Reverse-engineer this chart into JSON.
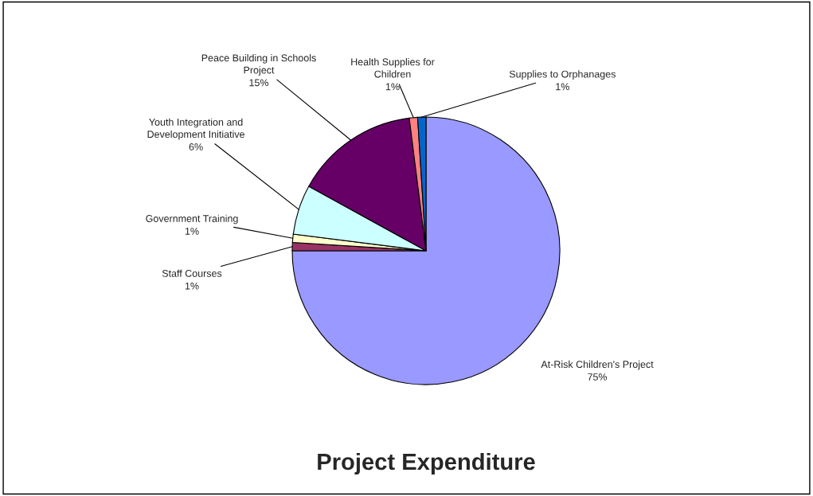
{
  "chart_data": {
    "type": "pie",
    "title": "Project Expenditure",
    "categories": [
      "At-Risk Children's Project",
      "Staff Courses",
      "Government Training",
      "Youth Integration and\nDevelopment Initiative",
      "Peace Building in Schools\nProject",
      "Health Supplies for\nChildren",
      "Supplies to Orphanages"
    ],
    "values": [
      75,
      1,
      1,
      6,
      15,
      1,
      1
    ],
    "colors": [
      "#9999ff",
      "#993366",
      "#ffffcc",
      "#ccffff",
      "#660066",
      "#ff8080",
      "#0066cc"
    ],
    "value_labels": [
      "75%",
      "1%",
      "1%",
      "6%",
      "15%",
      "1%",
      "1%"
    ],
    "legend": false
  }
}
